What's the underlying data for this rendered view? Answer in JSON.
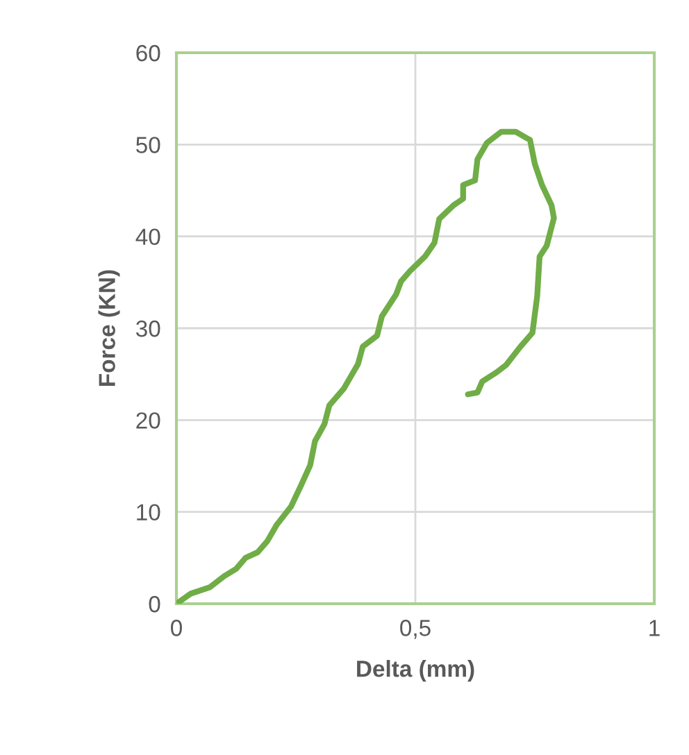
{
  "chart_data": {
    "type": "line",
    "xlabel": "Delta (mm)",
    "ylabel": "Force (KN)",
    "x": [
      0,
      0.03,
      0.07,
      0.1,
      0.125,
      0.145,
      0.17,
      0.19,
      0.21,
      0.24,
      0.26,
      0.28,
      0.29,
      0.31,
      0.32,
      0.35,
      0.38,
      0.39,
      0.42,
      0.43,
      0.46,
      0.47,
      0.49,
      0.52,
      0.54,
      0.55,
      0.58,
      0.6,
      0.6,
      0.625,
      0.63,
      0.65,
      0.68,
      0.71,
      0.74,
      0.75,
      0.765,
      0.785,
      0.79,
      0.775,
      0.76,
      0.755,
      0.745,
      0.72,
      0.69,
      0.67,
      0.64,
      0.63,
      0.61
    ],
    "series": [
      {
        "color": "#70ad47",
        "values": [
          0,
          1.1,
          1.8,
          3.0,
          3.8,
          5.0,
          5.6,
          6.8,
          8.6,
          10.6,
          12.8,
          15.1,
          17.7,
          19.6,
          21.6,
          23.4,
          26.1,
          28.0,
          29.2,
          31.3,
          33.7,
          35.1,
          36.3,
          37.8,
          39.3,
          41.9,
          43.4,
          44.1,
          45.6,
          46.1,
          48.4,
          50.2,
          51.4,
          51.4,
          50.5,
          47.9,
          45.6,
          43.4,
          42.0,
          39.0,
          37.8,
          33.5,
          29.5,
          28.0,
          26.0,
          25.2,
          24.2,
          23.0,
          22.8
        ]
      }
    ],
    "xlim": [
      0,
      1
    ],
    "xticks": [
      0,
      {
        "value": 0.5,
        "label": "0,5"
      },
      1
    ],
    "ylim": [
      0,
      60
    ],
    "yticks": [
      0,
      10,
      20,
      30,
      40,
      50,
      60
    ],
    "grid": true,
    "line_style": "solid",
    "marker": "none"
  }
}
